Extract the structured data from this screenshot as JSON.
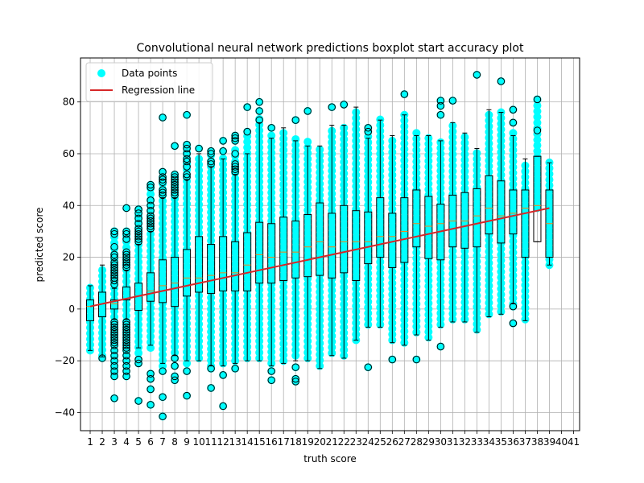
{
  "chart_data": {
    "type": "boxplot",
    "title": "Convolutional neural network predictions boxplot start accuracy plot",
    "xlabel": "truth score",
    "ylabel": "predicted score",
    "x_tick_labels": [
      "1",
      "2",
      "3",
      "4",
      "5",
      "6",
      "7",
      "8",
      "9",
      "10",
      "11",
      "12",
      "13",
      "14",
      "15",
      "16",
      "17",
      "18",
      "19",
      "20",
      "21",
      "22",
      "23",
      "24",
      "25",
      "26",
      "27",
      "28",
      "29",
      "30",
      "31",
      "32",
      "33",
      "34",
      "35",
      "36",
      "37",
      "38",
      "39",
      "40",
      "41"
    ],
    "y_tick_labels": [
      "−40",
      "−20",
      "0",
      "20",
      "40",
      "60",
      "80"
    ],
    "y_ticks": [
      -40,
      -20,
      0,
      20,
      40,
      60,
      80
    ],
    "xlim": [
      0.2,
      41.5
    ],
    "ylim": [
      -47,
      97
    ],
    "grid": true,
    "legend_position": "top-left",
    "legend": [
      {
        "label": "Data points",
        "kind": "marker",
        "color": "#00ffff"
      },
      {
        "label": "Regression line",
        "kind": "line",
        "color": "#d62728"
      }
    ],
    "colors": {
      "points": "#00ffff",
      "regression": "#d62728",
      "median": "#ff7f0e",
      "box": "#000000",
      "grid": "#b0b0b0"
    },
    "regression_line": {
      "x0": 1,
      "y0": 1,
      "x1": 39,
      "y1": 39
    },
    "boxes": [
      {
        "x": 1,
        "q1": -4.5,
        "median": 1,
        "q3": 3.5,
        "whislo": -16,
        "whishi": 9,
        "points_min": -16,
        "points_max": 10,
        "fliers": []
      },
      {
        "x": 2,
        "q1": -3,
        "median": 2,
        "q3": 6.5,
        "whislo": -18.5,
        "whishi": 17,
        "points_min": -18,
        "points_max": 17,
        "fliers": [
          -19
        ]
      },
      {
        "x": 3,
        "q1": 0,
        "median": 2,
        "q3": 3.5,
        "whislo": -4,
        "whishi": 8,
        "points_min": -25,
        "points_max": 30,
        "fliers": [
          -34.5,
          -26,
          -24,
          -22,
          -20,
          -18,
          -16,
          -14,
          -13,
          -12,
          -11,
          -10,
          -9,
          -8,
          -7,
          -6,
          -5,
          9.5,
          11,
          12,
          13,
          14,
          15,
          16,
          17,
          18,
          20,
          21,
          24,
          29,
          30
        ]
      },
      {
        "x": 4,
        "q1": 3.5,
        "median": 4,
        "q3": 8.5,
        "whislo": -4,
        "whishi": 15,
        "points_min": -18,
        "points_max": 30,
        "fliers": [
          -26,
          -24,
          -22,
          -20,
          -18,
          -16,
          -15,
          -14,
          -13,
          -12,
          -11,
          -10,
          -9,
          -8,
          -7,
          -6,
          -5,
          16,
          17,
          18,
          19,
          20,
          21,
          22,
          27,
          29,
          30,
          39
        ]
      },
      {
        "x": 5,
        "q1": -0.5,
        "median": 5,
        "q3": 10,
        "whislo": -15,
        "whishi": 25,
        "points_min": -17,
        "points_max": 38,
        "fliers": [
          -35.5,
          -21,
          -19.5,
          26,
          27,
          28,
          29,
          30,
          31,
          33,
          35,
          37,
          38.5
        ]
      },
      {
        "x": 6,
        "q1": 3,
        "median": 7,
        "q3": 14,
        "whislo": -14,
        "whishi": 30,
        "points_min": -15,
        "points_max": 48,
        "fliers": [
          -37,
          -31,
          -27,
          -25,
          31,
          32,
          33,
          34,
          35,
          36,
          38,
          40,
          42,
          47,
          48
        ]
      },
      {
        "x": 7,
        "q1": 2.5,
        "median": 9,
        "q3": 19,
        "whislo": -21,
        "whishi": 43,
        "points_min": -22,
        "points_max": 52,
        "fliers": [
          -41.5,
          -34,
          -24,
          44,
          45,
          46,
          49,
          50,
          51,
          53,
          74
        ]
      },
      {
        "x": 8,
        "q1": 1,
        "median": 10,
        "q3": 20,
        "whislo": -18,
        "whishi": 43,
        "points_min": -19,
        "points_max": 52,
        "fliers": [
          -27.5,
          -26,
          -22,
          -19,
          44,
          45,
          46,
          47,
          48,
          49,
          50,
          51,
          52,
          63
        ]
      },
      {
        "x": 9,
        "q1": 5,
        "median": 12,
        "q3": 23,
        "whislo": -20,
        "whishi": 50,
        "points_min": -21,
        "points_max": 63,
        "fliers": [
          -33.5,
          -24,
          51,
          52,
          55,
          57,
          58,
          60,
          62,
          63.5,
          75
        ]
      },
      {
        "x": 10,
        "q1": 6.5,
        "median": 12,
        "q3": 28,
        "whislo": -20,
        "whishi": 60,
        "points_min": -19,
        "points_max": 60,
        "fliers": [
          62
        ]
      },
      {
        "x": 11,
        "q1": 6,
        "median": 13,
        "q3": 25,
        "whislo": -22,
        "whishi": 55,
        "points_min": -22,
        "points_max": 60,
        "fliers": [
          -30.5,
          -23,
          56,
          57,
          60,
          61
        ]
      },
      {
        "x": 12,
        "q1": 7,
        "median": 14,
        "q3": 28,
        "whislo": -22,
        "whishi": 58,
        "points_min": -21,
        "points_max": 60,
        "fliers": [
          -37.5,
          -25.5,
          61,
          65
        ]
      },
      {
        "x": 13,
        "q1": 7,
        "median": 14,
        "q3": 26,
        "whislo": -21,
        "whishi": 52,
        "points_min": -20,
        "points_max": 63,
        "fliers": [
          -23,
          53,
          54,
          55,
          56,
          60,
          65,
          66,
          67
        ]
      },
      {
        "x": 14,
        "q1": 7,
        "median": 17,
        "q3": 29.5,
        "whislo": -20,
        "whishi": 60,
        "points_min": -19,
        "points_max": 68,
        "fliers": [
          68.5,
          78
        ]
      },
      {
        "x": 15,
        "q1": 10,
        "median": 21,
        "q3": 33.5,
        "whislo": -20,
        "whishi": 72,
        "points_min": -19,
        "points_max": 75,
        "fliers": [
          73,
          76.5,
          80
        ]
      },
      {
        "x": 16,
        "q1": 10,
        "median": 20,
        "q3": 33,
        "whislo": -22,
        "whishi": 66,
        "points_min": -21,
        "points_max": 68,
        "fliers": [
          -27.5,
          -24,
          70
        ]
      },
      {
        "x": 17,
        "q1": 11,
        "median": 22,
        "q3": 35.5,
        "whislo": -21,
        "whishi": 70,
        "points_min": -20,
        "points_max": 69,
        "fliers": []
      },
      {
        "x": 18,
        "q1": 12,
        "median": 22,
        "q3": 34,
        "whislo": -20,
        "whishi": 65,
        "points_min": -18,
        "points_max": 66,
        "fliers": [
          -28,
          -27,
          -22.5,
          73
        ]
      },
      {
        "x": 19,
        "q1": 12.5,
        "median": 24,
        "q3": 36.5,
        "whislo": -20,
        "whishi": 63,
        "points_min": -19,
        "points_max": 66,
        "fliers": [
          76.5
        ]
      },
      {
        "x": 20,
        "q1": 13,
        "median": 26,
        "q3": 41,
        "whislo": -23,
        "whishi": 63,
        "points_min": -22,
        "points_max": 62,
        "fliers": []
      },
      {
        "x": 21,
        "q1": 12,
        "median": 24,
        "q3": 37,
        "whislo": -18,
        "whishi": 71,
        "points_min": -17,
        "points_max": 70,
        "fliers": [
          78
        ]
      },
      {
        "x": 22,
        "q1": 14,
        "median": 26,
        "q3": 40,
        "whislo": -19,
        "whishi": 71,
        "points_min": -18,
        "points_max": 70,
        "fliers": [
          79
        ]
      },
      {
        "x": 23,
        "q1": 11,
        "median": 26,
        "q3": 38,
        "whislo": -12,
        "whishi": 78,
        "points_min": -12,
        "points_max": 77,
        "fliers": []
      },
      {
        "x": 24,
        "q1": 17.5,
        "median": 26,
        "q3": 37.5,
        "whislo": -7,
        "whishi": 66,
        "points_min": -6,
        "points_max": 68,
        "fliers": [
          -22.5,
          68.5,
          70
        ]
      },
      {
        "x": 25,
        "q1": 20,
        "median": 28,
        "q3": 43,
        "whislo": -7,
        "whishi": 73,
        "points_min": -6,
        "points_max": 75,
        "fliers": []
      },
      {
        "x": 26,
        "q1": 16,
        "median": 28,
        "q3": 37,
        "whislo": -13,
        "whishi": 67,
        "points_min": -12,
        "points_max": 67,
        "fliers": [
          -19.5
        ]
      },
      {
        "x": 27,
        "q1": 18,
        "median": 30,
        "q3": 43,
        "whislo": -14,
        "whishi": 75,
        "points_min": -13,
        "points_max": 76,
        "fliers": [
          83
        ]
      },
      {
        "x": 28,
        "q1": 24,
        "median": 33,
        "q3": 46,
        "whislo": -10,
        "whishi": 67,
        "points_min": -9,
        "points_max": 68,
        "fliers": [
          -19.5
        ]
      },
      {
        "x": 29,
        "q1": 19.5,
        "median": 32,
        "q3": 43.5,
        "whislo": -12,
        "whishi": 67,
        "points_min": -11,
        "points_max": 67,
        "fliers": []
      },
      {
        "x": 30,
        "q1": 19,
        "median": 33,
        "q3": 40.5,
        "whislo": -7,
        "whishi": 65,
        "points_min": -6,
        "points_max": 65,
        "fliers": [
          -14.5,
          75,
          78.5,
          80.5
        ]
      },
      {
        "x": 31,
        "q1": 24,
        "median": 34,
        "q3": 44,
        "whislo": -5,
        "whishi": 72,
        "points_min": -4,
        "points_max": 71,
        "fliers": [
          80.5
        ]
      },
      {
        "x": 32,
        "q1": 23.5,
        "median": 34,
        "q3": 45,
        "whislo": -5,
        "whishi": 68,
        "points_min": -4,
        "points_max": 67,
        "fliers": []
      },
      {
        "x": 33,
        "q1": 24,
        "median": 36,
        "q3": 46.5,
        "whislo": -9,
        "whishi": 62,
        "points_min": -8,
        "points_max": 62,
        "fliers": [
          90.5
        ]
      },
      {
        "x": 34,
        "q1": 29,
        "median": 39,
        "q3": 51.5,
        "whislo": -3,
        "whishi": 77,
        "points_min": -2,
        "points_max": 77,
        "fliers": []
      },
      {
        "x": 35,
        "q1": 25.5,
        "median": 36,
        "q3": 49.5,
        "whislo": -2,
        "whishi": 76,
        "points_min": -1,
        "points_max": 77,
        "fliers": [
          88
        ]
      },
      {
        "x": 36,
        "q1": 29,
        "median": 37,
        "q3": 46,
        "whislo": 2,
        "whishi": 67,
        "points_min": 2,
        "points_max": 68,
        "fliers": [
          -5.5,
          1,
          72,
          77
        ]
      },
      {
        "x": 37,
        "q1": 20,
        "median": 39,
        "q3": 46,
        "whislo": -4.5,
        "whishi": 58,
        "points_min": -4,
        "points_max": 57,
        "fliers": []
      },
      {
        "x": 38,
        "q1": 26,
        "median": 40,
        "q3": 59,
        "whislo": 26,
        "whishi": 59,
        "points_min": 39,
        "points_max": 81,
        "fliers": [
          69,
          81
        ]
      },
      {
        "x": 39,
        "q1": 20,
        "median": 33,
        "q3": 46,
        "whislo": 17,
        "whishi": 56.5,
        "points_min": 17,
        "points_max": 57,
        "fliers": []
      }
    ]
  }
}
